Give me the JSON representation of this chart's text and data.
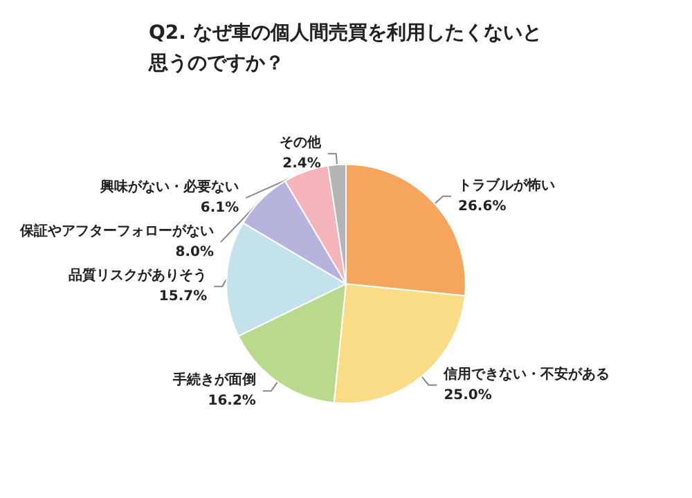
{
  "chart_data": {
    "type": "pie",
    "title": "Q2. なぜ車の個人間売買を利用したくないと思うのですか？",
    "categories": [
      "トラブルが怖い",
      "信用できない・不安がある",
      "手続きが面倒",
      "品質リスクがありそう",
      "保証やアフターフォローがない",
      "興味がない・必要ない",
      "その他"
    ],
    "values": [
      26.6,
      25.0,
      16.2,
      15.7,
      8.0,
      6.1,
      2.4
    ],
    "value_labels": [
      "26.6%",
      "25.0%",
      "16.2%",
      "15.7%",
      "8.0%",
      "6.1%",
      "2.4%"
    ],
    "colors": [
      "#f6a55c",
      "#fbdc86",
      "#b9d98c",
      "#c3e2ec",
      "#b6b3dc",
      "#f4b4ba",
      "#b4b4b4"
    ],
    "legend": false
  }
}
